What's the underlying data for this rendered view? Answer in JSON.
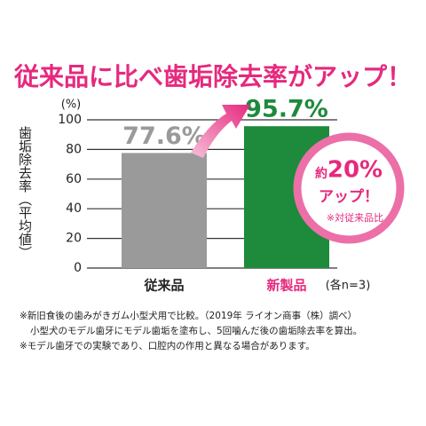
{
  "chart_data": {
    "type": "bar",
    "title": "従来品に比べ歯垢除去率がアップ！",
    "y_unit": "(%)",
    "y_label": "歯垢除去率（平均値）",
    "categories": [
      "従来品",
      "新製品"
    ],
    "category_colors": [
      "#222222",
      "#e6297e"
    ],
    "values": [
      77.6,
      95.7
    ],
    "value_labels": [
      "77.6%",
      "95.7%"
    ],
    "colors": [
      "#9a9a9a",
      "#1e8a3c"
    ],
    "ylim": [
      0,
      100
    ],
    "yticks": [
      0,
      20,
      40,
      60,
      80,
      100
    ],
    "grid": true,
    "sample_note": "(各n=3)",
    "bubble": {
      "prefix": "約",
      "amount": "20%",
      "suffix": "アップ！",
      "note": "※対従来品比"
    },
    "footnotes": [
      "※新旧食後の歯みがきガム小型犬用で比較。（2019年 ライオン商事（株）調べ）",
      "小型犬のモデル歯牙にモデル歯垢を塗布し、5回噛んだ後の歯垢除去率を算出。",
      "※モデル歯牙での実験であり、口腔内の作用と異なる場合があります。"
    ]
  }
}
